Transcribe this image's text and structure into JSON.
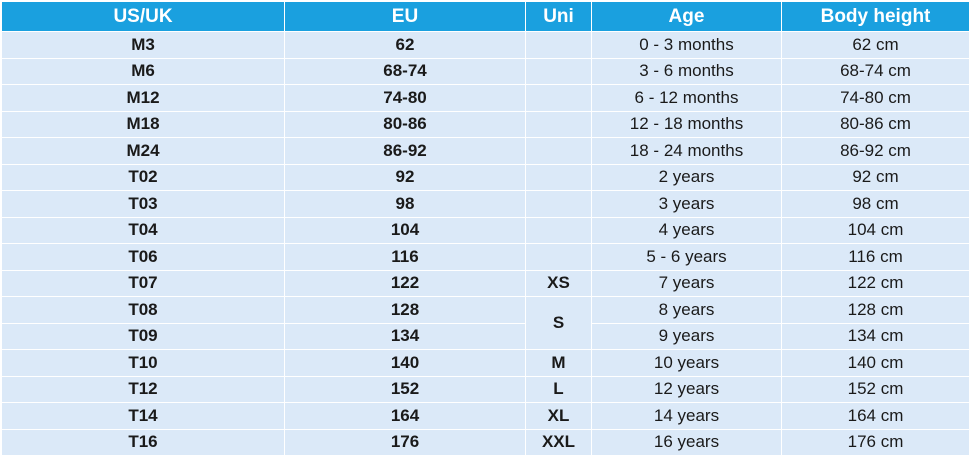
{
  "headers": [
    "US/UK",
    "EU",
    "Uni",
    "Age",
    "Body height"
  ],
  "rows": [
    {
      "usuk": "M3",
      "eu": "62",
      "uni": "",
      "age": "0 - 3 months",
      "height": "62 cm"
    },
    {
      "usuk": "M6",
      "eu": "68-74",
      "uni": "",
      "age": "3 - 6 months",
      "height": "68-74 cm"
    },
    {
      "usuk": "M12",
      "eu": "74-80",
      "uni": "",
      "age": "6 - 12 months",
      "height": "74-80 cm"
    },
    {
      "usuk": "M18",
      "eu": "80-86",
      "uni": "",
      "age": "12 - 18 months",
      "height": "80-86 cm"
    },
    {
      "usuk": "M24",
      "eu": "86-92",
      "uni": "",
      "age": "18 - 24 months",
      "height": "86-92 cm"
    },
    {
      "usuk": "T02",
      "eu": "92",
      "uni": "",
      "age": "2 years",
      "height": "92 cm"
    },
    {
      "usuk": "T03",
      "eu": "98",
      "uni": "",
      "age": "3 years",
      "height": "98 cm"
    },
    {
      "usuk": "T04",
      "eu": "104",
      "uni": "",
      "age": "4 years",
      "height": "104 cm"
    },
    {
      "usuk": "T06",
      "eu": "116",
      "uni": "",
      "age": "5 - 6 years",
      "height": "116 cm"
    },
    {
      "usuk": "T07",
      "eu": "122",
      "uni": "XS",
      "age": "7 years",
      "height": "122 cm"
    },
    {
      "usuk": "T08",
      "eu": "128",
      "uni": "S",
      "age": "8 years",
      "height": "128 cm"
    },
    {
      "usuk": "T09",
      "eu": "134",
      "uni": "",
      "age": "9 years",
      "height": "134 cm"
    },
    {
      "usuk": "T10",
      "eu": "140",
      "uni": "M",
      "age": "10 years",
      "height": "140 cm"
    },
    {
      "usuk": "T12",
      "eu": "152",
      "uni": "L",
      "age": "12 years",
      "height": "152 cm"
    },
    {
      "usuk": "T14",
      "eu": "164",
      "uni": "XL",
      "age": "14 years",
      "height": "164 cm"
    },
    {
      "usuk": "T16",
      "eu": "176",
      "uni": "XXL",
      "age": "16 years",
      "height": "176 cm"
    }
  ]
}
